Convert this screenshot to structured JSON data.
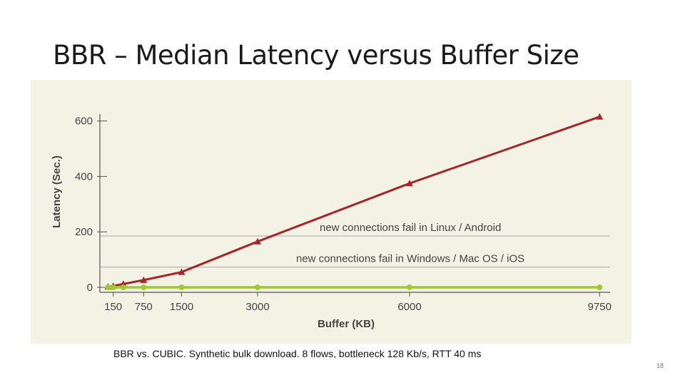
{
  "slide": {
    "title": "BBR – Median Latency versus Buffer Size",
    "caption": "BBR vs. CUBIC.  Synthetic bulk download.  8 flows, bottleneck 128 Kb/s, RTT 40 ms",
    "page_number": "18"
  },
  "colors": {
    "panel_background": "#f3f2e4",
    "bbr_line": "#a5262a",
    "cubic_line": "#9ecb2e",
    "reference_line": "#a8a8a8",
    "axis": "#555555",
    "text": "#444444"
  },
  "chart_data": {
    "type": "line",
    "xlabel": "Buffer (KB)",
    "ylabel": "Latency (Sec.)",
    "xlim": [
      0,
      10000
    ],
    "ylim": [
      0,
      630
    ],
    "x_ticks": [
      150,
      750,
      1500,
      3000,
      6000,
      9750
    ],
    "x_tick_labels": [
      "150",
      "750",
      "1500",
      "3000",
      "6000",
      "9750"
    ],
    "y_ticks": [
      0,
      200,
      400,
      600
    ],
    "y_tick_labels": [
      "0",
      "200",
      "400",
      "600"
    ],
    "grid": false,
    "legend": "none",
    "series": [
      {
        "key": "upper",
        "marker": "triangle",
        "color": "#a5262a",
        "x": [
          50,
          150,
          350,
          750,
          1500,
          3000,
          6000,
          9750
        ],
        "y": [
          2,
          5,
          12,
          26,
          55,
          165,
          375,
          615
        ]
      },
      {
        "key": "lower",
        "marker": "circle",
        "color": "#9ecb2e",
        "x": [
          50,
          150,
          350,
          750,
          1500,
          3000,
          6000,
          9750
        ],
        "y": [
          0,
          0,
          0,
          0,
          0,
          0,
          0,
          0
        ]
      }
    ],
    "annotations": [
      {
        "y": 185,
        "text": "new connections fail in Linux / Android"
      },
      {
        "y": 73,
        "text": "new connections fail in Windows / Mac OS / iOS"
      }
    ]
  }
}
